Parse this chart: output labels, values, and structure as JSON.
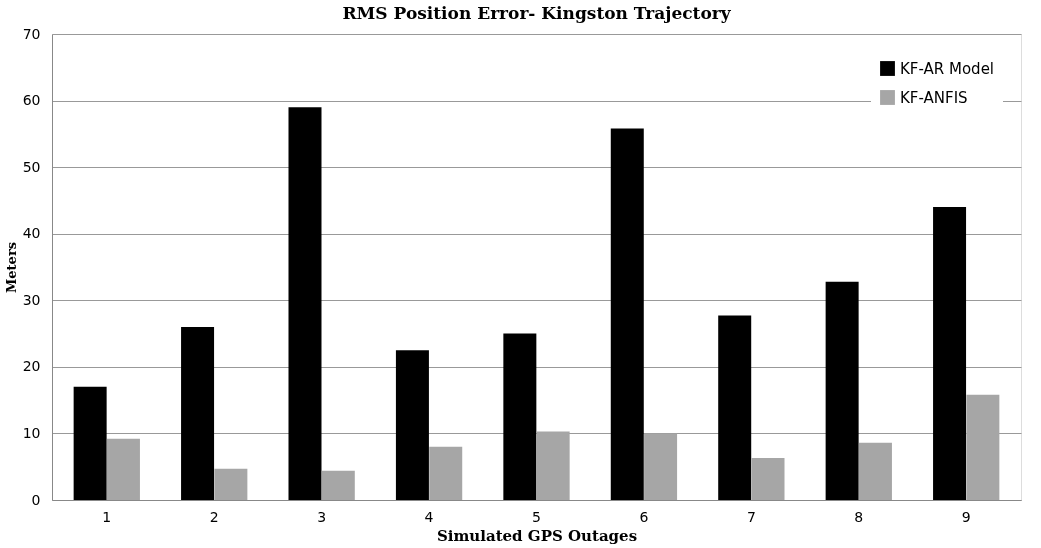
{
  "chart_data": {
    "type": "bar",
    "title": "RMS Position Error- Kingston Trajectory",
    "xlabel": "Simulated GPS Outages",
    "ylabel": "Meters",
    "categories": [
      "1",
      "2",
      "3",
      "4",
      "5",
      "6",
      "7",
      "8",
      "9"
    ],
    "series": [
      {
        "name": "KF-AR Model",
        "color": "#000000",
        "values": [
          17,
          26,
          59,
          22.5,
          25,
          55.8,
          27.7,
          32.8,
          44
        ]
      },
      {
        "name": "KF-ANFIS",
        "color": "#a6a6a6",
        "values": [
          9.2,
          4.7,
          4.4,
          8,
          10.3,
          10,
          6.3,
          8.6,
          15.8
        ]
      }
    ],
    "ylim": [
      0,
      70
    ],
    "yticks": [
      0,
      10,
      20,
      30,
      40,
      50,
      60,
      70
    ],
    "grid": "y",
    "legend": "top right"
  }
}
